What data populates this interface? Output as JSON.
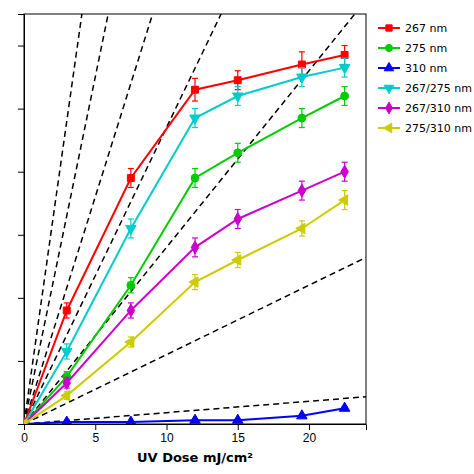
{
  "chart_data": {
    "type": "line",
    "xlabel": "UV Dose mJ/cm²",
    "x": [
      0,
      3,
      7.5,
      12,
      15,
      19.5,
      22.5
    ],
    "xlim": [
      0,
      24
    ],
    "xticks": [
      0,
      5,
      10,
      15,
      20
    ],
    "ylim": [
      0,
      6.5
    ],
    "yticks": [
      0,
      1,
      2,
      3,
      4,
      5,
      6
    ],
    "tick_labels": "x",
    "grid": false,
    "legend": "right",
    "series": [
      {
        "name": "267 nm",
        "color": "#ff0000",
        "marker": "square",
        "values": [
          0,
          1.8,
          3.9,
          5.3,
          5.45,
          5.7,
          5.85
        ],
        "yerr": [
          0,
          0.12,
          0.15,
          0.18,
          0.15,
          0.2,
          0.15
        ]
      },
      {
        "name": "275 nm",
        "color": "#00cc00",
        "marker": "circle",
        "values": [
          0,
          0.75,
          2.2,
          3.9,
          4.3,
          4.85,
          5.2
        ],
        "yerr": [
          0,
          0.08,
          0.12,
          0.15,
          0.15,
          0.15,
          0.15
        ]
      },
      {
        "name": "310 nm",
        "color": "#0000ff",
        "marker": "triangle-up",
        "values": [
          0,
          0.03,
          0.03,
          0.06,
          0.06,
          0.13,
          0.25
        ],
        "yerr": [
          0,
          0.005,
          0.005,
          0.008,
          0.008,
          0.01,
          0.02
        ]
      },
      {
        "name": "267/275 nm",
        "color": "#00cccc",
        "marker": "triangle-down",
        "values": [
          0,
          1.15,
          3.1,
          4.85,
          5.2,
          5.5,
          5.65
        ],
        "yerr": [
          0,
          0.12,
          0.15,
          0.15,
          0.15,
          0.15,
          0.15
        ]
      },
      {
        "name": "267/310 nm",
        "color": "#cc00cc",
        "marker": "diamond",
        "values": [
          0,
          0.65,
          1.8,
          2.8,
          3.25,
          3.7,
          4.0
        ],
        "yerr": [
          0,
          0.08,
          0.12,
          0.15,
          0.15,
          0.15,
          0.15
        ]
      },
      {
        "name": "275/310 nm",
        "color": "#cccc00",
        "marker": "triangle-left",
        "values": [
          0,
          0.45,
          1.3,
          2.25,
          2.6,
          3.1,
          3.55
        ],
        "yerr": [
          0,
          0.06,
          0.08,
          0.12,
          0.12,
          0.12,
          0.15
        ]
      }
    ],
    "reference_lines": {
      "slopes": [
        1.6,
        1.1,
        0.72,
        0.47,
        0.28,
        0.11,
        0.018
      ],
      "color": "#000000",
      "line_style": "dashed"
    }
  }
}
